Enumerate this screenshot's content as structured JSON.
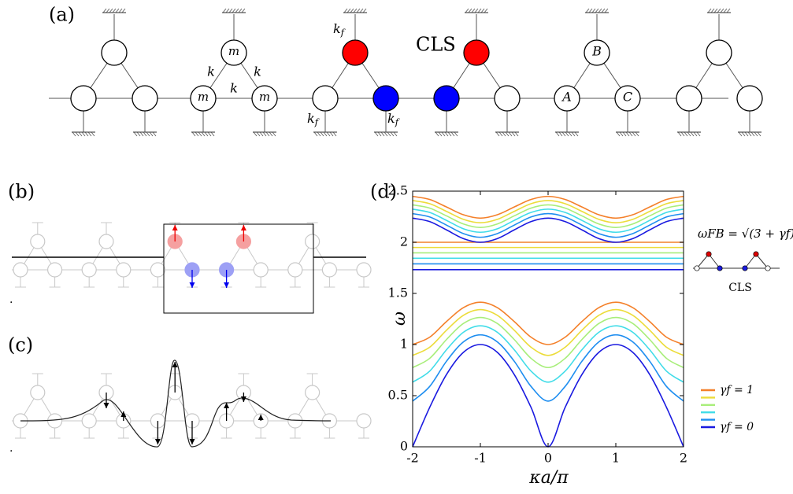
{
  "panel_a": {
    "label": "(a)",
    "cls_label": "CLS",
    "mass_label": "m",
    "spring_label": "k",
    "ground_spring_label": {
      "base": "k",
      "sub": "f"
    },
    "node_labels": [
      "A",
      "B",
      "C"
    ]
  },
  "panel_b": {
    "label": "(b)",
    "mark": "."
  },
  "panel_c": {
    "label": "(c)",
    "mark": "."
  },
  "chart_data": {
    "type": "line",
    "label": "(d)",
    "x_label": "κa/π",
    "y_label": "ω",
    "flat_band_formula": "ωFB = √(3 + γf)",
    "inset_label": "CLS",
    "x": [
      -2,
      -1.75,
      -1.5,
      -1.25,
      -1,
      -0.75,
      -0.5,
      -0.25,
      0,
      0.25,
      0.5,
      0.75,
      1,
      1.25,
      1.5,
      1.75,
      2
    ],
    "xlim": [
      -2,
      2
    ],
    "xticks": [
      -2,
      -1,
      0,
      1,
      2
    ],
    "ylim": [
      0,
      2.5
    ],
    "yticks": [
      0,
      0.5,
      1,
      1.5,
      2,
      2.5
    ],
    "series": [
      {
        "name": "γf = 1",
        "color": "#f4802a",
        "values": [
          1,
          1.071,
          1.225,
          1.361,
          1.414,
          1.361,
          1.225,
          1.071,
          1,
          1.071,
          1.225,
          1.361,
          1.414,
          1.361,
          1.225,
          1.071,
          1
        ],
        "flat": 2,
        "upper_values": [
          2.449,
          2.419,
          2.345,
          2.269,
          2.236,
          2.269,
          2.345,
          2.419,
          2.449,
          2.419,
          2.345,
          2.269,
          2.236,
          2.269,
          2.345,
          2.419,
          2.449
        ]
      },
      {
        "color": "#ecdc3a",
        "values": [
          0.894,
          0.973,
          1.14,
          1.286,
          1.342,
          1.286,
          1.14,
          0.973,
          0.894,
          0.973,
          1.14,
          1.286,
          1.342,
          1.286,
          1.14,
          0.973,
          0.894
        ],
        "flat": 1.949,
        "upper_values": [
          2.408,
          2.378,
          2.302,
          2.224,
          2.191,
          2.224,
          2.302,
          2.378,
          2.408,
          2.378,
          2.302,
          2.224,
          2.191,
          2.224,
          2.302,
          2.378,
          2.408
        ]
      },
      {
        "color": "#a8ee7a",
        "values": [
          0.775,
          0.864,
          1.049,
          1.206,
          1.265,
          1.206,
          1.049,
          0.864,
          0.775,
          0.864,
          1.049,
          1.206,
          1.265,
          1.206,
          1.049,
          0.864,
          0.775
        ],
        "flat": 1.897,
        "upper_values": [
          2.366,
          2.335,
          2.258,
          2.179,
          2.145,
          2.179,
          2.258,
          2.335,
          2.366,
          2.335,
          2.258,
          2.179,
          2.145,
          2.179,
          2.258,
          2.335,
          2.366
        ]
      },
      {
        "color": "#40dce8",
        "values": [
          0.632,
          0.739,
          0.949,
          1.12,
          1.183,
          1.12,
          0.949,
          0.739,
          0.632,
          0.739,
          0.949,
          1.12,
          1.183,
          1.12,
          0.949,
          0.739,
          0.632
        ],
        "flat": 1.844,
        "upper_values": [
          2.324,
          2.292,
          2.214,
          2.132,
          2.098,
          2.132,
          2.214,
          2.292,
          2.324,
          2.292,
          2.214,
          2.132,
          2.098,
          2.132,
          2.214,
          2.292,
          2.324
        ]
      },
      {
        "color": "#1e8ef0",
        "values": [
          0.447,
          0.589,
          0.837,
          1.026,
          1.095,
          1.026,
          0.837,
          0.589,
          0.447,
          0.589,
          0.837,
          1.026,
          1.095,
          1.026,
          0.837,
          0.589,
          0.447
        ],
        "flat": 1.789,
        "upper_values": [
          2.28,
          2.248,
          2.168,
          2.085,
          2.049,
          2.085,
          2.168,
          2.248,
          2.28,
          2.248,
          2.168,
          2.085,
          2.049,
          2.085,
          2.168,
          2.248,
          2.28
        ]
      },
      {
        "name": "γf = 0",
        "color": "#1a1ae0",
        "values": [
          0,
          0.383,
          0.707,
          0.924,
          1,
          0.924,
          0.707,
          0.383,
          0,
          0.383,
          0.707,
          0.924,
          1,
          0.924,
          0.707,
          0.383,
          0
        ],
        "flat": 1.732,
        "upper_values": [
          2.236,
          2.203,
          2.121,
          2.036,
          2,
          2.036,
          2.121,
          2.203,
          2.236,
          2.203,
          2.121,
          2.036,
          2,
          2.036,
          2.121,
          2.203,
          2.236
        ]
      }
    ]
  }
}
